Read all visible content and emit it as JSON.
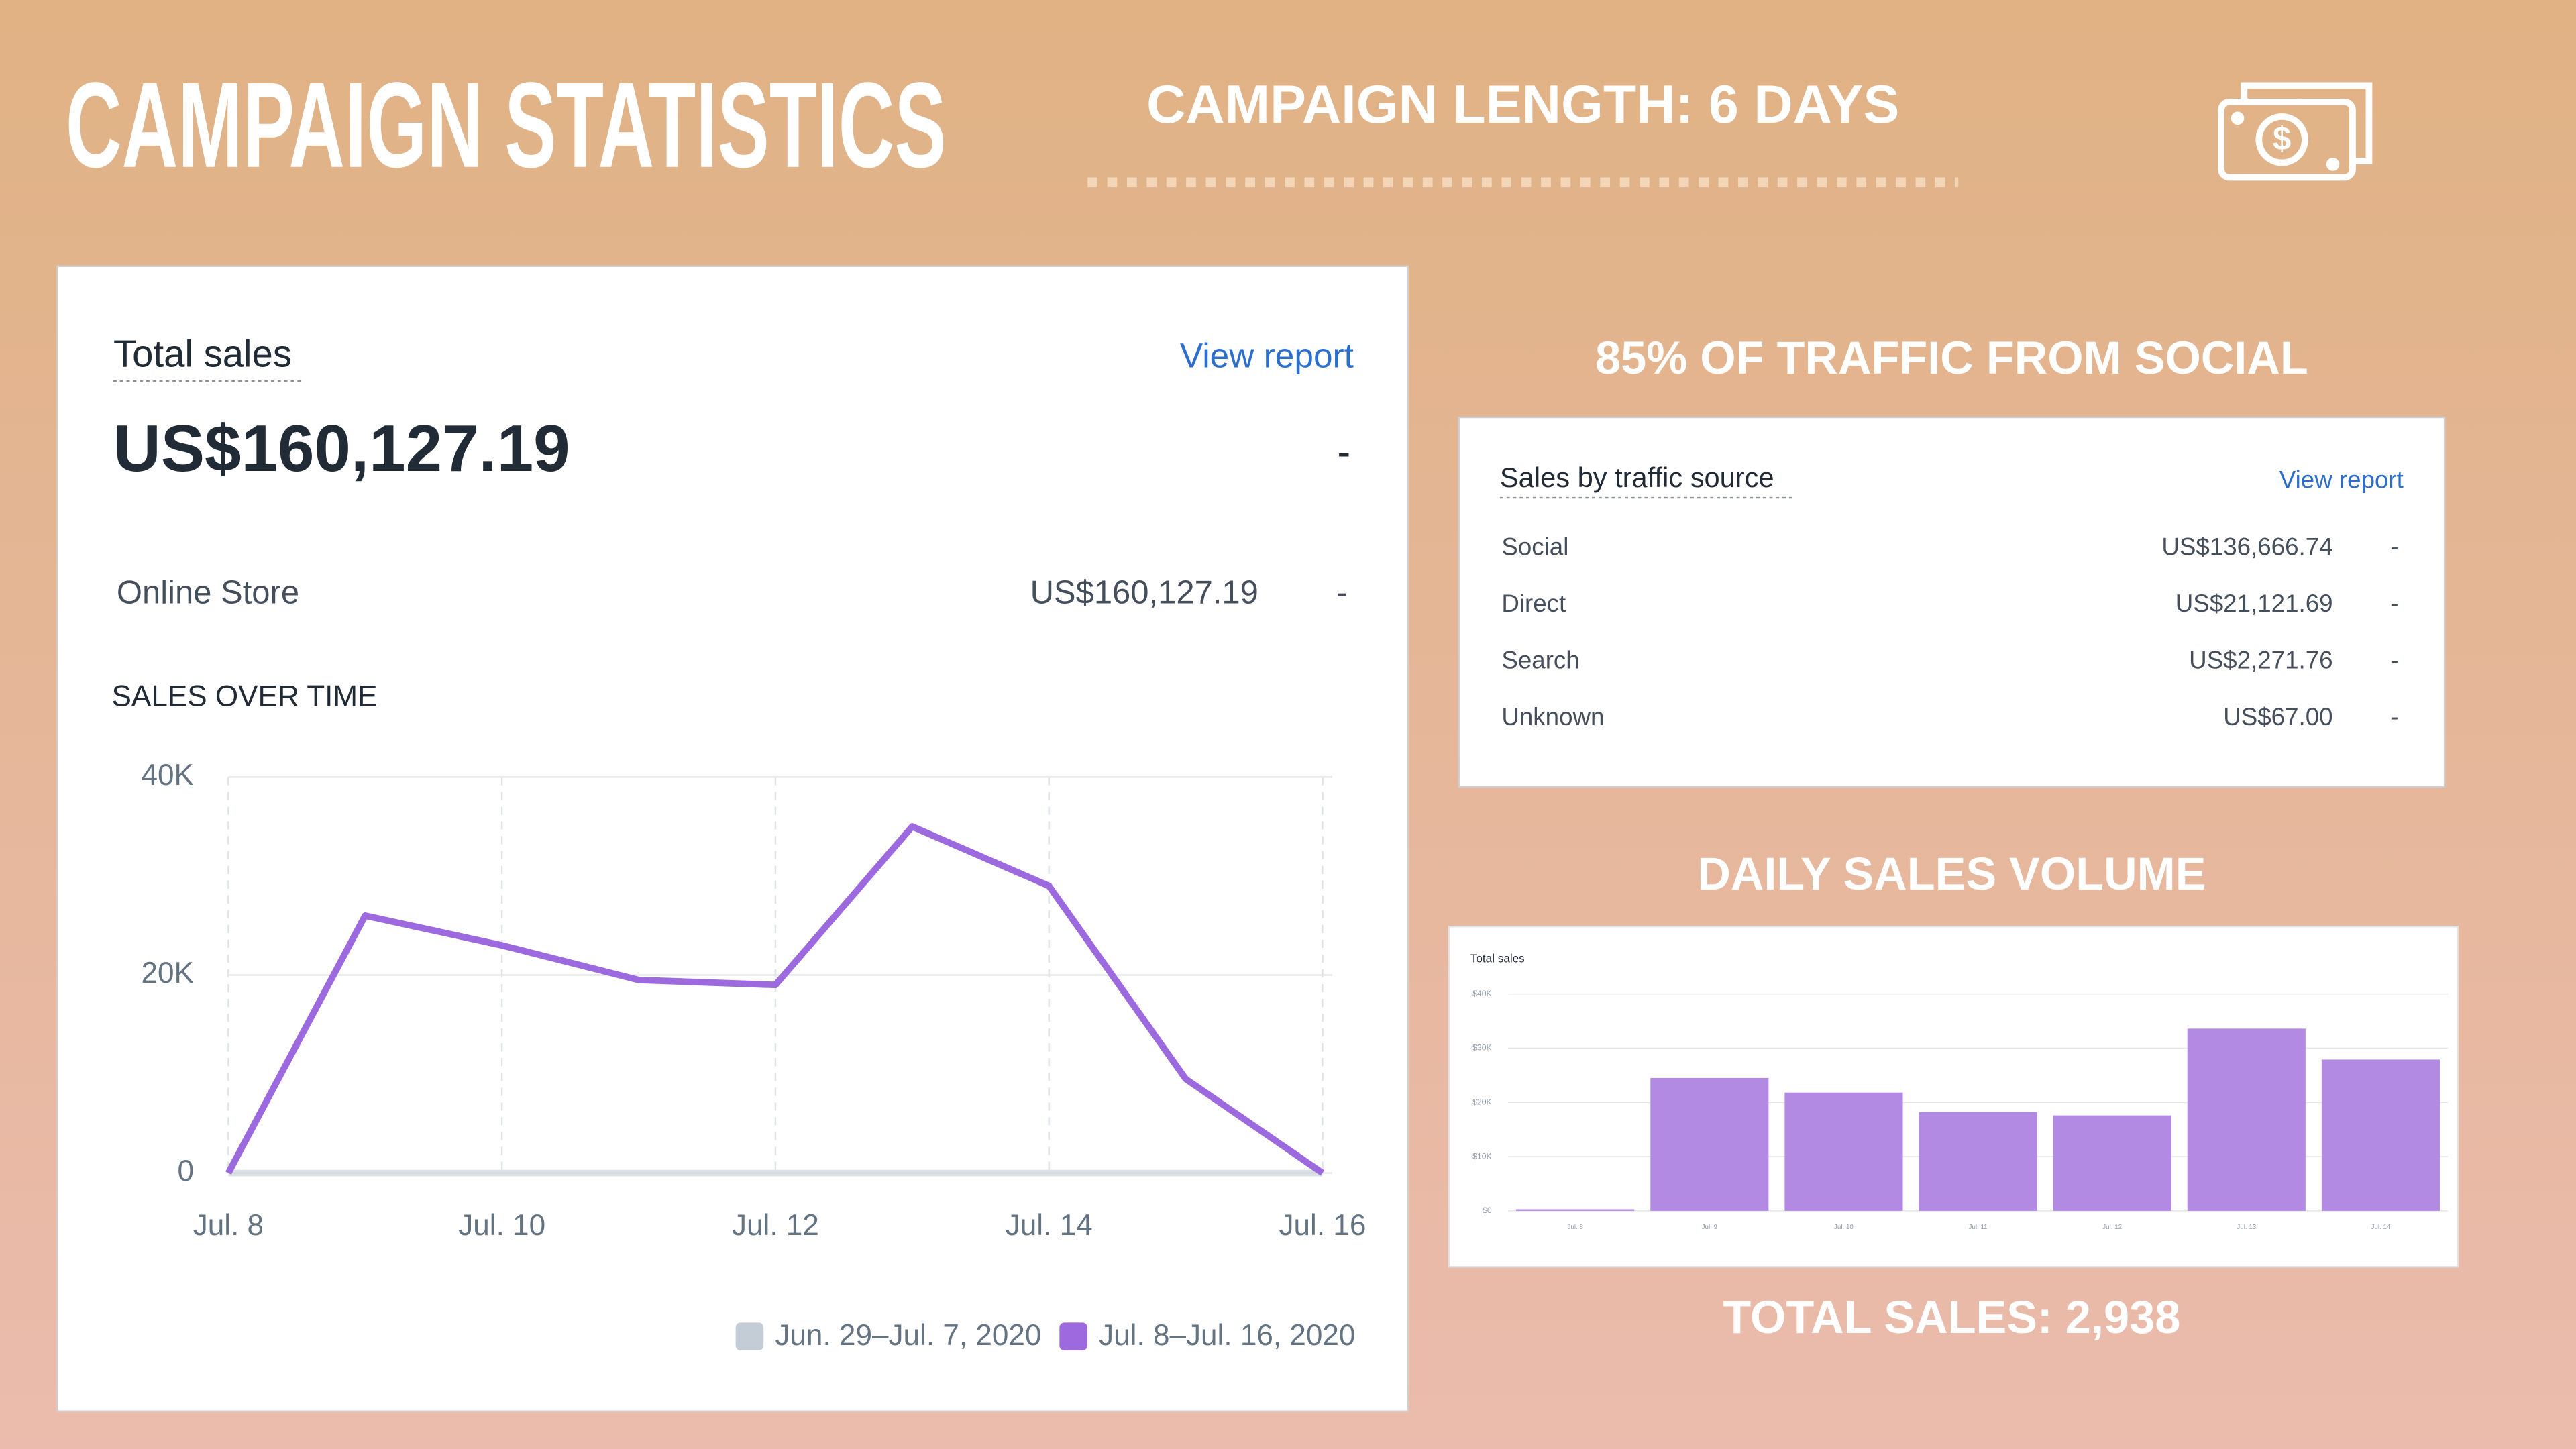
{
  "header": {
    "title": "CAMPAIGN STATISTICS",
    "campaign_length": "CAMPAIGN LENGTH:  6 DAYS"
  },
  "total_sales_card": {
    "title": "Total sales",
    "link": "View report",
    "amount": "US$160,127.19",
    "change": "-",
    "channel": "Online Store",
    "channel_amount": "US$160,127.19",
    "channel_change": "-",
    "section": "SALES OVER TIME"
  },
  "traffic": {
    "heading": "85% OF TRAFFIC FROM SOCIAL",
    "title": "Sales by traffic source",
    "link": "View report",
    "rows": [
      [
        "Social",
        "US$136,666.74",
        "-"
      ],
      [
        "Direct",
        "US$21,121.69",
        "-"
      ],
      [
        "Search",
        "US$2,271.76",
        "-"
      ],
      [
        "Unknown",
        "US$67.00",
        "-"
      ]
    ]
  },
  "daily_sales": {
    "heading": "DAILY SALES VOLUME",
    "total": "TOTAL SALES: 2,938"
  },
  "chart_data": [
    {
      "type": "line",
      "categories": [
        "Jul. 8",
        null,
        "Jul. 10",
        null,
        "Jul. 12",
        null,
        "Jul. 14",
        null,
        "Jul. 16"
      ],
      "series": [
        {
          "name": "Jun. 29–Jul. 7, 2020",
          "color": "#c4cdd5",
          "values": [
            0,
            0,
            0,
            0,
            0,
            0,
            0,
            0,
            0
          ]
        },
        {
          "name": "Jul. 8–Jul. 16, 2020",
          "color": "#9c6ade",
          "values": [
            0,
            26000,
            23000,
            19500,
            19000,
            35000,
            29000,
            9500,
            0
          ]
        }
      ],
      "ylim": [
        0,
        40000
      ],
      "yticks": [
        0,
        {
          "value": 20000,
          "label": "20K"
        },
        {
          "value": 40000,
          "label": "40K"
        }
      ],
      "grid": true
    },
    {
      "type": "bar",
      "title": "Total sales",
      "categories": [
        "Jul. 8",
        "Jul. 9",
        "Jul. 10",
        "Jul. 11",
        "Jul. 12",
        "Jul. 13",
        "Jul. 14"
      ],
      "values": [
        300,
        24500,
        21800,
        18200,
        17600,
        33600,
        27900
      ],
      "color": "#b28ae4",
      "ylim": [
        0,
        40000
      ],
      "yticks": [
        {
          "value": 0,
          "label": "$0"
        },
        {
          "value": 10000,
          "label": "$10K"
        },
        {
          "value": 20000,
          "label": "$20K"
        },
        {
          "value": 30000,
          "label": "$30K"
        },
        {
          "value": 40000,
          "label": "$40K"
        }
      ],
      "grid": true
    }
  ]
}
